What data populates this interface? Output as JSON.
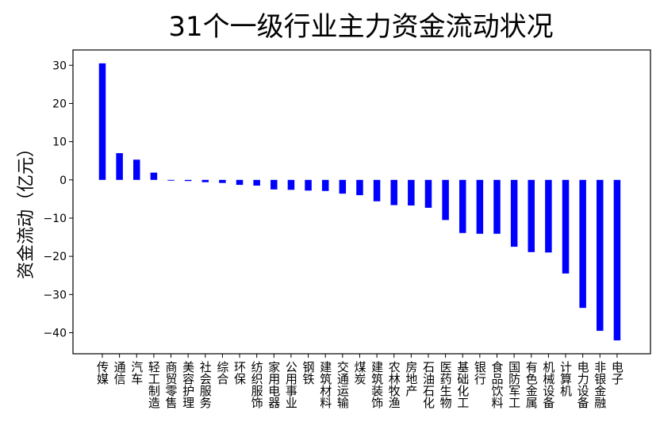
{
  "chart_data": {
    "type": "bar",
    "title": "31个一级行业主力资金流动状况",
    "xlabel": "",
    "ylabel": "资金流动（亿元）",
    "ylim": [
      -45.5,
      34
    ],
    "yticks": [
      30,
      20,
      10,
      0,
      -10,
      -20,
      -30,
      -40
    ],
    "grid": false,
    "bar_color": "#0000ff",
    "categories": [
      "传媒",
      "通信",
      "汽车",
      "轻工制造",
      "商贸零售",
      "美容护理",
      "社会服务",
      "综合",
      "环保",
      "纺织服饰",
      "家用电器",
      "公用事业",
      "钢铁",
      "建筑材料",
      "交通运输",
      "煤炭",
      "建筑装饰",
      "农林牧渔",
      "房地产",
      "石油石化",
      "医药生物",
      "基础化工",
      "银行",
      "食品饮料",
      "国防军工",
      "有色金属",
      "机械设备",
      "计算机",
      "电力设备",
      "非银金融",
      "电子"
    ],
    "values": [
      30.5,
      7.0,
      5.3,
      1.9,
      -0.2,
      -0.3,
      -0.6,
      -0.8,
      -1.3,
      -1.5,
      -2.5,
      -2.6,
      -2.8,
      -2.9,
      -3.6,
      -4.0,
      -5.6,
      -6.6,
      -6.7,
      -7.3,
      -10.5,
      -13.9,
      -14.1,
      -14.1,
      -17.5,
      -18.9,
      -19.0,
      -24.5,
      -33.5,
      -39.5,
      -42.0
    ]
  }
}
